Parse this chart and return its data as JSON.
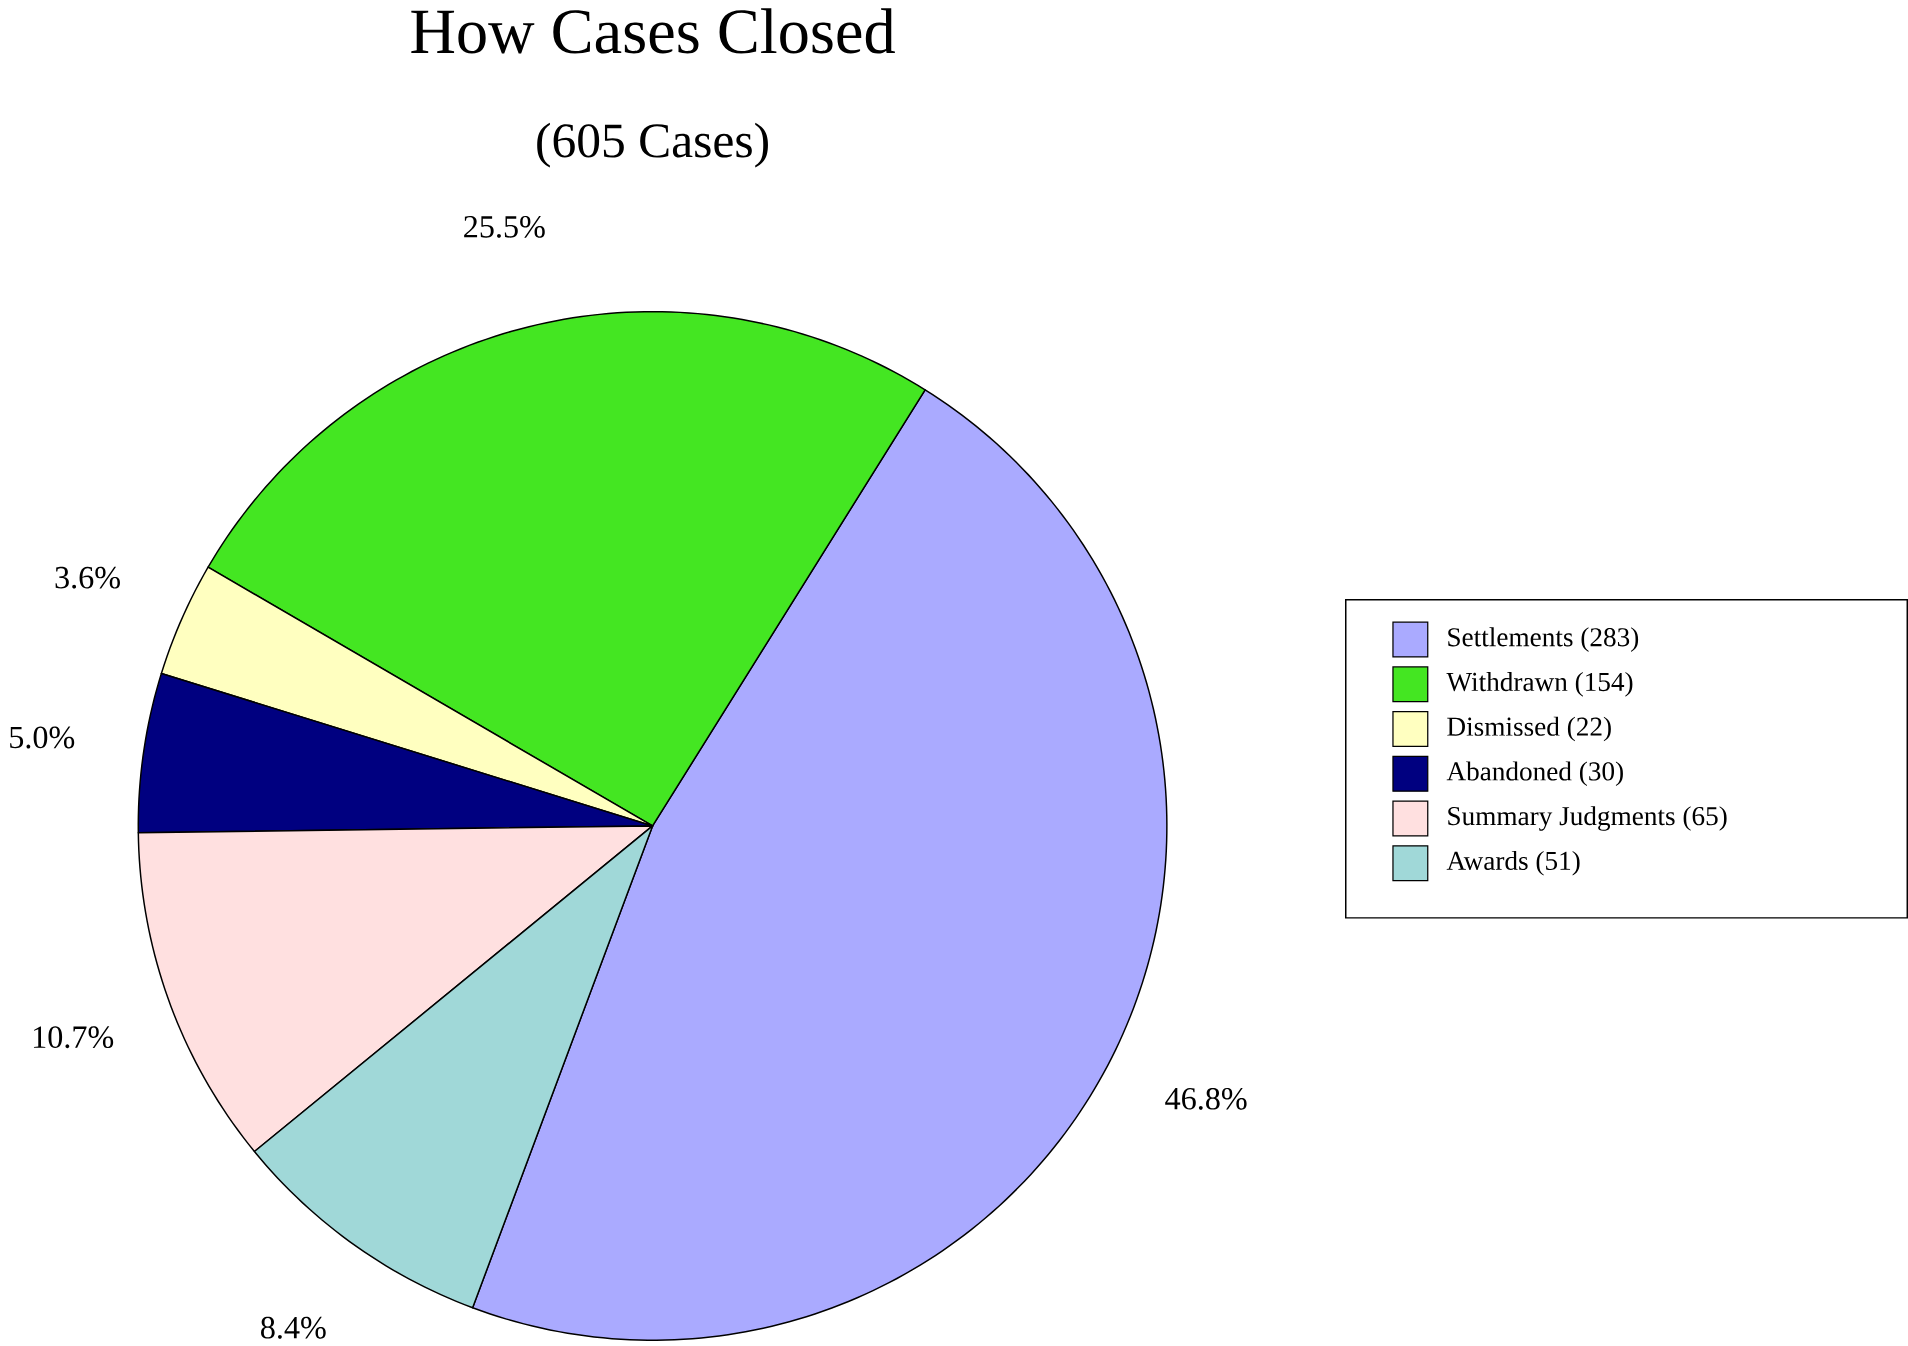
{
  "chart_data": {
    "type": "pie",
    "title": "How Cases Closed",
    "subtitle": "(605 Cases)",
    "categories": [
      "Settlements (283)",
      "Withdrawn (154)",
      "Dismissed (22)",
      "Abandoned (30)",
      "Summary Judgments (65)",
      "Awards (51)"
    ],
    "values": [
      46.8,
      25.5,
      3.6,
      5.0,
      10.7,
      8.4
    ],
    "value_labels": [
      "46.8%",
      "25.5%",
      "3.6%",
      "5.0%",
      "10.7%",
      "8.4%"
    ],
    "colors": [
      "#aaaaff",
      "#44e622",
      "#ffffc0",
      "#000080",
      "#ffe0e0",
      "#a0d8d8"
    ],
    "legend": "right"
  }
}
